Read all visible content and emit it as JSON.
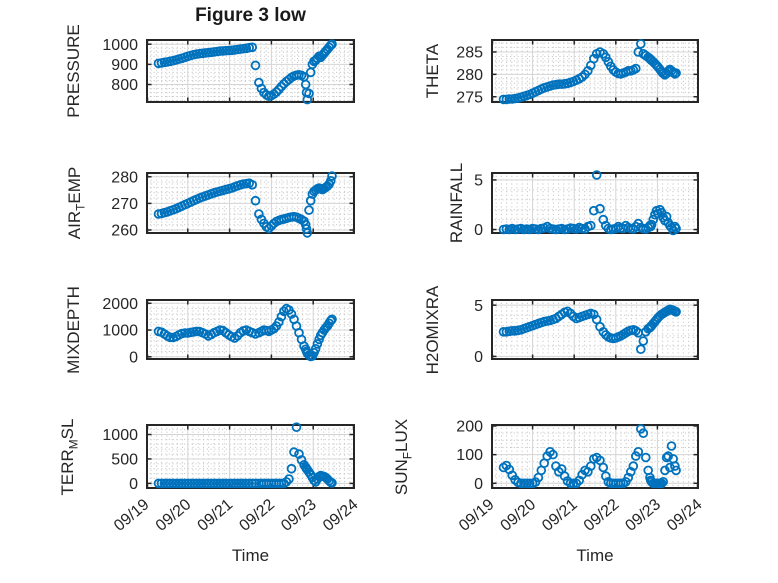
{
  "figure_title": "Figure 3 low",
  "xlabel": "Time",
  "style": {
    "marker_color": "#0072BD",
    "axis_color": "#262626",
    "major_grid_color": "#d4d4d4",
    "minor_grid_color": "#c9c9c9"
  },
  "chart_data": {
    "type": "scatter",
    "title": "Figure 3 low",
    "xlabel": "Time",
    "xlim": [
      0,
      5
    ],
    "x_minor_step": 0.125,
    "x_ticks": {
      "values": [
        0,
        1,
        2,
        3,
        4,
        5
      ],
      "labels": [
        "09/19",
        "09/20",
        "09/21",
        "09/22",
        "09/23",
        "09/24"
      ]
    },
    "x_days": [
      0.3,
      0.37,
      0.44,
      0.51,
      0.58,
      0.65,
      0.72,
      0.79,
      0.86,
      0.93,
      1.0,
      1.07,
      1.14,
      1.21,
      1.28,
      1.35,
      1.42,
      1.49,
      1.56,
      1.63,
      1.7,
      1.77,
      1.84,
      1.91,
      1.98,
      2.05,
      2.12,
      2.19,
      2.26,
      2.33,
      2.4,
      2.47,
      2.54,
      2.62,
      2.7,
      2.76,
      2.82,
      2.88,
      2.94,
      3.0,
      3.06,
      3.12,
      3.18,
      3.24,
      3.3,
      3.36,
      3.42,
      3.48,
      3.54,
      3.6,
      3.66,
      3.72,
      3.78,
      3.82,
      3.84,
      3.86,
      3.9,
      3.94,
      3.98,
      4.02,
      4.06,
      4.1,
      4.14,
      4.18,
      4.22,
      4.26,
      4.3,
      4.34,
      4.38,
      4.42,
      4.45
    ],
    "subplots": [
      {
        "key": "pressure",
        "ylabel": "PRESSURE",
        "ylabel_parts": {
          "pre": "PRESSURE",
          "sub": "",
          "post": ""
        },
        "ylim": [
          708,
          1026
        ],
        "yticks": [
          800,
          900,
          1000
        ],
        "y_minor_step": 20,
        "y": [
          905,
          907,
          910,
          912,
          915,
          918,
          922,
          926,
          930,
          935,
          940,
          944,
          948,
          951,
          953,
          955,
          957,
          958,
          960,
          962,
          964,
          966,
          967,
          968,
          969,
          970,
          972,
          974,
          976,
          978,
          980,
          983,
          985,
          895,
          810,
          780,
          760,
          748,
          742,
          745,
          752,
          762,
          775,
          790,
          803,
          815,
          825,
          835,
          842,
          846,
          848,
          845,
          838,
          800,
          760,
          725,
          755,
          860,
          900,
          915,
          920,
          930,
          940,
          935,
          945,
          955,
          965,
          975,
          985,
          995,
          1000
        ]
      },
      {
        "key": "theta",
        "ylabel": "THETA",
        "ylabel_parts": {
          "pre": "THETA",
          "sub": "",
          "post": ""
        },
        "ylim": [
          273.6,
          287.9
        ],
        "yticks": [
          275,
          280,
          285
        ],
        "y_minor_step": 1,
        "y": [
          274.4,
          274.4,
          274.5,
          274.5,
          274.6,
          274.7,
          274.9,
          275.1,
          275.3,
          275.5,
          275.8,
          276.1,
          276.4,
          276.7,
          277.0,
          277.2,
          277.4,
          277.6,
          277.7,
          277.8,
          277.8,
          277.9,
          278.0,
          278.2,
          278.4,
          278.7,
          279.0,
          279.4,
          280.0,
          280.8,
          282.0,
          283.5,
          284.6,
          285.0,
          284.6,
          283.8,
          282.8,
          281.8,
          281.0,
          280.5,
          280.2,
          280.1,
          280.3,
          280.5,
          280.8,
          280.8,
          281.0,
          281.3,
          285.0,
          286.8,
          284.6,
          284.2,
          283.8,
          283.5,
          283.3,
          283.1,
          282.8,
          282.4,
          282.0,
          281.6,
          281.1,
          280.6,
          280.2,
          279.9,
          280.2,
          280.7,
          281.1,
          280.8,
          280.4,
          280.1,
          280.3
        ]
      },
      {
        "key": "air_temp",
        "ylabel": "AIR_TEMP",
        "ylabel_parts": {
          "pre": "AIR",
          "sub": "T",
          "post": "EMP"
        },
        "ylim": [
          258.5,
          281.8
        ],
        "yticks": [
          260,
          270,
          280
        ],
        "y_minor_step": 2,
        "y": [
          266.0,
          266.2,
          266.5,
          266.8,
          267.2,
          267.6,
          268.0,
          268.5,
          269.0,
          269.5,
          270.0,
          270.5,
          271.0,
          271.5,
          272.0,
          272.4,
          272.8,
          273.2,
          273.6,
          274.0,
          274.3,
          274.6,
          274.9,
          275.2,
          275.5,
          275.8,
          276.2,
          276.6,
          277.0,
          277.3,
          277.4,
          277.6,
          277.0,
          271.0,
          266.0,
          264.0,
          262.5,
          261.2,
          260.6,
          261.5,
          262.5,
          263.2,
          263.6,
          263.9,
          264.1,
          264.4,
          264.7,
          264.9,
          265.0,
          264.8,
          264.4,
          263.9,
          263.3,
          262.0,
          260.4,
          258.9,
          267.5,
          271.0,
          273.5,
          274.5,
          275.0,
          275.5,
          275.8,
          275.5,
          275.2,
          275.6,
          276.0,
          276.5,
          277.2,
          278.5,
          280.3
        ]
      },
      {
        "key": "rainfall",
        "ylabel": "RAINFALL",
        "ylabel_parts": {
          "pre": "RAINFALL",
          "sub": "",
          "post": ""
        },
        "ylim": [
          -0.45,
          5.8
        ],
        "yticks": [
          0,
          5
        ],
        "y_minor_step": 1,
        "y": [
          0,
          0.05,
          0,
          0.1,
          0,
          0.05,
          0.1,
          0,
          0.05,
          0,
          0.1,
          0.05,
          0,
          0.1,
          0.15,
          0.3,
          0.1,
          0.05,
          0,
          0.05,
          0.1,
          0,
          0.05,
          0.15,
          0.1,
          0.05,
          0.2,
          0.1,
          0.05,
          0.3,
          0.4,
          1.9,
          5.5,
          2.1,
          1.0,
          0.4,
          0.1,
          0,
          0.05,
          0.1,
          0.3,
          0.15,
          0.1,
          0.4,
          0.2,
          0.1,
          0.05,
          0.3,
          0.6,
          0.2,
          0.1,
          0.05,
          0.2,
          0.4,
          0.3,
          0.5,
          1.0,
          1.5,
          1.9,
          1.6,
          2.0,
          1.7,
          1.2,
          0.9,
          1.3,
          0.7,
          0.4,
          0.2,
          -0.1,
          0.3,
          0.1
        ]
      },
      {
        "key": "mixdepth",
        "ylabel": "MIXDEPTH",
        "ylabel_parts": {
          "pre": "MIXDEPTH",
          "sub": "",
          "post": ""
        },
        "ylim": [
          -120,
          2160
        ],
        "yticks": [
          0,
          1000,
          2000
        ],
        "y_minor_step": 200,
        "y": [
          950,
          920,
          850,
          780,
          730,
          720,
          760,
          820,
          870,
          890,
          890,
          910,
          930,
          950,
          940,
          900,
          850,
          780,
          830,
          900,
          950,
          1000,
          980,
          900,
          820,
          750,
          700,
          780,
          900,
          970,
          1000,
          950,
          900,
          850,
          900,
          950,
          1000,
          980,
          950,
          1000,
          1050,
          1150,
          1300,
          1500,
          1700,
          1800,
          1750,
          1600,
          1400,
          1150,
          900,
          650,
          400,
          280,
          200,
          130,
          60,
          10,
          30,
          150,
          300,
          480,
          650,
          800,
          900,
          1000,
          1080,
          1150,
          1250,
          1350,
          1400
        ]
      },
      {
        "key": "h2omixra",
        "ylabel": "H2OMIXRA",
        "ylabel_parts": {
          "pre": "H2OMIXRA",
          "sub": "",
          "post": ""
        },
        "ylim": [
          -0.35,
          5.6
        ],
        "yticks": [
          0,
          5
        ],
        "y_minor_step": 1,
        "y": [
          2.4,
          2.4,
          2.45,
          2.5,
          2.5,
          2.55,
          2.6,
          2.7,
          2.8,
          2.9,
          3.0,
          3.1,
          3.2,
          3.3,
          3.4,
          3.45,
          3.5,
          3.6,
          3.7,
          3.9,
          4.1,
          4.3,
          4.4,
          4.2,
          3.9,
          3.7,
          3.8,
          3.9,
          4.0,
          4.1,
          4.2,
          4.1,
          3.6,
          2.9,
          2.4,
          2.1,
          1.9,
          1.8,
          1.75,
          1.8,
          1.9,
          2.0,
          2.15,
          2.3,
          2.45,
          2.55,
          2.6,
          2.5,
          2.3,
          0.7,
          1.5,
          2.4,
          2.7,
          2.8,
          2.9,
          3.0,
          3.2,
          3.4,
          3.6,
          3.8,
          3.95,
          4.1,
          4.2,
          4.3,
          4.4,
          4.5,
          4.6,
          4.55,
          4.5,
          4.4,
          4.35
        ]
      },
      {
        "key": "terr_msl",
        "ylabel": "TERR_MSL",
        "ylabel_parts": {
          "pre": "TERR",
          "sub": "M",
          "post": "SL"
        },
        "ylim": [
          -115,
          1215
        ],
        "yticks": [
          0,
          500,
          1000
        ],
        "y_minor_step": 100,
        "y": [
          0,
          0,
          0,
          0,
          0,
          0,
          0,
          0,
          0,
          0,
          0,
          0,
          0,
          0,
          0,
          0,
          0,
          0,
          0,
          0,
          0,
          0,
          0,
          0,
          0,
          0,
          0,
          0,
          0,
          0,
          0,
          0,
          0,
          0,
          0,
          0,
          0,
          0,
          0,
          0,
          0,
          0,
          0,
          0,
          0,
          30,
          90,
          300,
          640,
          1150,
          600,
          480,
          380,
          330,
          300,
          280,
          230,
          180,
          120,
          60,
          30,
          90,
          140,
          160,
          150,
          140,
          120,
          90,
          50,
          20,
          10
        ]
      },
      {
        "key": "sun_flux",
        "ylabel": "SUN_FLUX",
        "ylabel_parts": {
          "pre": "SUN",
          "sub": "F",
          "post": "LUX"
        },
        "ylim": [
          -20,
          207
        ],
        "yticks": [
          0,
          100,
          200
        ],
        "y_minor_step": 25,
        "y": [
          55,
          62,
          48,
          28,
          12,
          3,
          0,
          0,
          0,
          0,
          0,
          4,
          20,
          45,
          70,
          95,
          110,
          100,
          60,
          40,
          50,
          25,
          8,
          0,
          0,
          0,
          10,
          30,
          45,
          40,
          60,
          85,
          90,
          80,
          55,
          25,
          5,
          0,
          0,
          0,
          0,
          0,
          0,
          5,
          20,
          40,
          60,
          95,
          110,
          190,
          175,
          90,
          45,
          20,
          10,
          5,
          0,
          0,
          0,
          0,
          0,
          0,
          5,
          45,
          90,
          95,
          55,
          130,
          85,
          60,
          45
        ]
      }
    ]
  }
}
